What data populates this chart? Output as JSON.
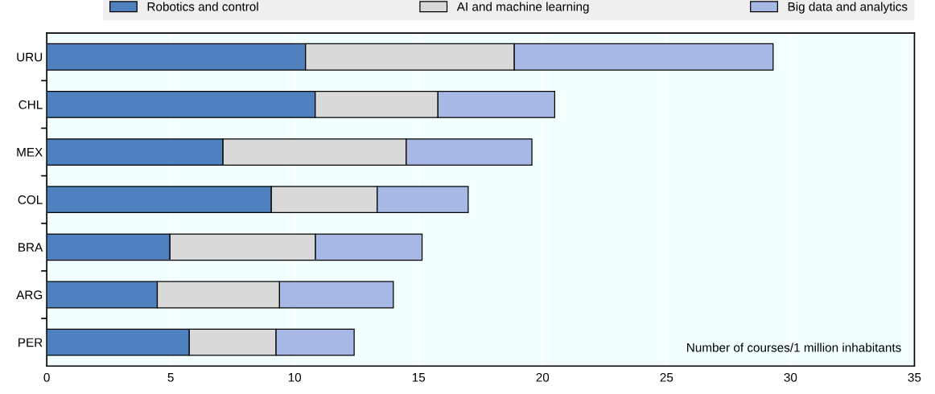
{
  "chart_data": {
    "type": "bar",
    "orientation": "horizontal",
    "stacked": true,
    "categories": [
      "URU",
      "CHL",
      "MEX",
      "COL",
      "BRA",
      "ARG",
      "PER"
    ],
    "series": [
      {
        "name": "Robotics and control",
        "color": "#4e81bd",
        "values": [
          10.44,
          10.83,
          7.11,
          9.06,
          4.97,
          4.46,
          5.75
        ]
      },
      {
        "name": "AI and machine learning",
        "color": "#d9d9d9",
        "values": [
          8.42,
          4.95,
          7.39,
          4.27,
          5.87,
          4.93,
          3.5
        ]
      },
      {
        "name": "Big data and analytics",
        "color": "#a6b8e3",
        "values": [
          10.44,
          4.71,
          5.07,
          3.67,
          4.3,
          4.59,
          3.15
        ]
      }
    ],
    "xlim": [
      0,
      35
    ],
    "xticks": [
      0,
      5,
      10,
      15,
      20,
      25,
      30,
      35
    ],
    "annotations": [
      "Number of courses/1 million inhabitants"
    ],
    "grid": "x",
    "legend": "top"
  }
}
